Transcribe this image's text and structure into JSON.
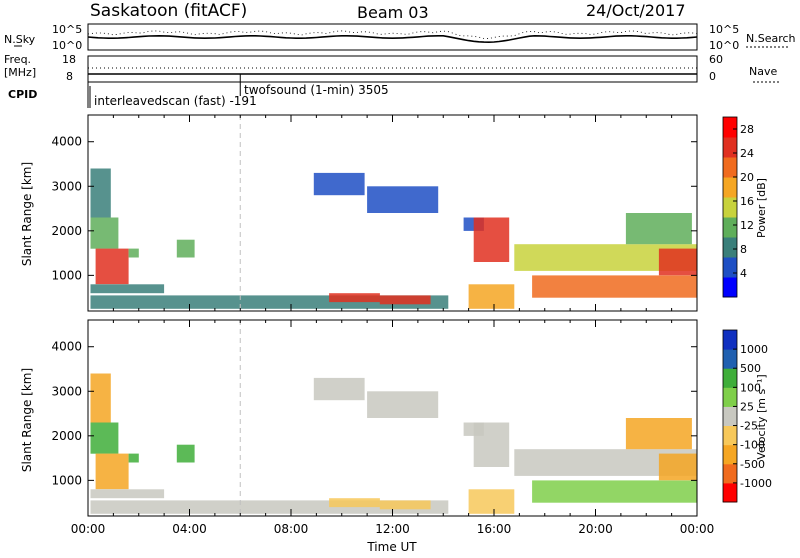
{
  "header": {
    "station": "Saskatoon (fitACF)",
    "beam": "Beam 03",
    "date": "24/Oct/2017"
  },
  "noise_panel": {
    "left_label": "N.Sky",
    "left_ticks": [
      "10^5",
      "10^0"
    ],
    "right_ticks": [
      "10^5",
      "10^0"
    ],
    "right_label": "N.Search"
  },
  "freq_panel": {
    "left_label_line1": "Freq.",
    "left_label_line2": "[MHz]",
    "left_ticks": [
      "18",
      "8"
    ],
    "right_ticks": [
      "60",
      "0"
    ],
    "right_label": "Nave"
  },
  "cpid_panel": {
    "label": "CPID",
    "entries": [
      {
        "time": 0.0,
        "text": "interleavedscan (fast)  -191"
      },
      {
        "time": 6.0,
        "text": "twofsound (1-min) 3505"
      }
    ]
  },
  "chart_data": [
    {
      "type": "heatmap",
      "name": "power",
      "ylabel": "Slant Range [km]",
      "ylim": [
        200,
        4600
      ],
      "y_ticks": [
        "1000",
        "2000",
        "3000",
        "4000"
      ],
      "y_tick_values": [
        1000,
        2000,
        3000,
        4000
      ],
      "x_ticks": [
        "00:00",
        "04:00",
        "08:00",
        "12:00",
        "16:00",
        "20:00",
        "00:00"
      ],
      "xlim_hours": [
        0,
        24
      ],
      "colorbar": {
        "label": "Power [dB]",
        "ticks": [
          "4",
          "8",
          "12",
          "16",
          "20",
          "24",
          "28"
        ],
        "tick_values": [
          4,
          8,
          12,
          16,
          20,
          24,
          28
        ],
        "range": [
          0,
          30
        ]
      },
      "regions": [
        {
          "t0": 0.1,
          "t1": 0.9,
          "r0": 2300,
          "r1": 3400,
          "v": 7
        },
        {
          "t0": 0.1,
          "t1": 1.2,
          "r0": 1600,
          "r1": 2300,
          "v": 12
        },
        {
          "t0": 0.3,
          "t1": 1.6,
          "r0": 800,
          "r1": 1600,
          "v": 24
        },
        {
          "t0": 0.1,
          "t1": 3.0,
          "r0": 600,
          "r1": 800,
          "v": 8
        },
        {
          "t0": 1.6,
          "t1": 2.0,
          "r0": 1400,
          "r1": 1600,
          "v": 12
        },
        {
          "t0": 3.5,
          "t1": 4.2,
          "r0": 1400,
          "r1": 1800,
          "v": 12
        },
        {
          "t0": 0.1,
          "t1": 14.2,
          "r0": 250,
          "r1": 550,
          "v": 8
        },
        {
          "t0": 8.9,
          "t1": 10.9,
          "r0": 2800,
          "r1": 3300,
          "v": 6
        },
        {
          "t0": 11.0,
          "t1": 13.8,
          "r0": 2400,
          "r1": 3000,
          "v": 5
        },
        {
          "t0": 9.5,
          "t1": 11.5,
          "r0": 400,
          "r1": 600,
          "v": 26
        },
        {
          "t0": 11.5,
          "t1": 13.5,
          "r0": 350,
          "r1": 550,
          "v": 24
        },
        {
          "t0": 14.8,
          "t1": 15.6,
          "r0": 2000,
          "r1": 2300,
          "v": 6
        },
        {
          "t0": 15.2,
          "t1": 16.6,
          "r0": 1300,
          "r1": 2300,
          "v": 24
        },
        {
          "t0": 15.0,
          "t1": 16.8,
          "r0": 250,
          "r1": 800,
          "v": 18
        },
        {
          "t0": 16.8,
          "t1": 24.0,
          "r0": 1100,
          "r1": 1700,
          "v": 14
        },
        {
          "t0": 17.5,
          "t1": 24.0,
          "r0": 500,
          "r1": 1000,
          "v": 22
        },
        {
          "t0": 21.2,
          "t1": 23.8,
          "r0": 1700,
          "r1": 2400,
          "v": 10
        },
        {
          "t0": 22.5,
          "t1": 24.0,
          "r0": 1000,
          "r1": 1600,
          "v": 26
        }
      ]
    },
    {
      "type": "heatmap",
      "name": "velocity",
      "ylabel": "Slant Range [km]",
      "ylim": [
        200,
        4600
      ],
      "y_ticks": [
        "1000",
        "2000",
        "3000",
        "4000"
      ],
      "y_tick_values": [
        1000,
        2000,
        3000,
        4000
      ],
      "x_ticks": [
        "00:00",
        "04:00",
        "08:00",
        "12:00",
        "16:00",
        "20:00",
        "00:00"
      ],
      "xlim_hours": [
        0,
        24
      ],
      "xlabel": "Time UT",
      "colorbar": {
        "label": "Velocity [m s⁻¹]",
        "ticks": [
          "1000",
          "500",
          "100",
          "25",
          "-25",
          "-100",
          "-500",
          "-1000"
        ],
        "levels": 9
      },
      "regions": [
        {
          "t0": 0.1,
          "t1": 0.9,
          "r0": 2300,
          "r1": 3400,
          "v": -200
        },
        {
          "t0": 0.1,
          "t1": 1.2,
          "r0": 1600,
          "r1": 2300,
          "v": 150
        },
        {
          "t0": 0.3,
          "t1": 1.6,
          "r0": 800,
          "r1": 1600,
          "v": -150
        },
        {
          "t0": 0.1,
          "t1": 3.0,
          "r0": 600,
          "r1": 800,
          "v": 0
        },
        {
          "t0": 1.6,
          "t1": 2.0,
          "r0": 1400,
          "r1": 1600,
          "v": 150
        },
        {
          "t0": 3.5,
          "t1": 4.2,
          "r0": 1400,
          "r1": 1800,
          "v": 150
        },
        {
          "t0": 0.1,
          "t1": 14.2,
          "r0": 250,
          "r1": 550,
          "v": 0
        },
        {
          "t0": 8.9,
          "t1": 10.9,
          "r0": 2800,
          "r1": 3300,
          "v": 0
        },
        {
          "t0": 11.0,
          "t1": 13.8,
          "r0": 2400,
          "r1": 3000,
          "v": 0
        },
        {
          "t0": 9.5,
          "t1": 11.5,
          "r0": 400,
          "r1": 600,
          "v": -60
        },
        {
          "t0": 11.5,
          "t1": 13.5,
          "r0": 350,
          "r1": 550,
          "v": -60
        },
        {
          "t0": 14.8,
          "t1": 15.6,
          "r0": 2000,
          "r1": 2300,
          "v": 0
        },
        {
          "t0": 15.2,
          "t1": 16.6,
          "r0": 1300,
          "r1": 2300,
          "v": 0
        },
        {
          "t0": 15.0,
          "t1": 16.8,
          "r0": 250,
          "r1": 800,
          "v": -60
        },
        {
          "t0": 16.8,
          "t1": 24.0,
          "r0": 1100,
          "r1": 1700,
          "v": 0
        },
        {
          "t0": 17.5,
          "t1": 24.0,
          "r0": 500,
          "r1": 1000,
          "v": 60
        },
        {
          "t0": 21.2,
          "t1": 23.8,
          "r0": 1700,
          "r1": 2400,
          "v": -300
        },
        {
          "t0": 22.5,
          "t1": 24.0,
          "r0": 1000,
          "r1": 1600,
          "v": -300
        }
      ]
    }
  ],
  "colors": {
    "power_scale": [
      "#0000ff",
      "#1e4fc4",
      "#3a7f7a",
      "#5fae5a",
      "#c8d23c",
      "#f5a623",
      "#f06b1e",
      "#e03020",
      "#ff0000"
    ],
    "velocity_scale": [
      "#ff0000",
      "#f06b1e",
      "#f5a623",
      "#f7c85a",
      "#c8c8c0",
      "#7fcf4a",
      "#3fae3a",
      "#2060b0",
      "#1030c0"
    ],
    "guide_line": "#c0c0c0"
  }
}
